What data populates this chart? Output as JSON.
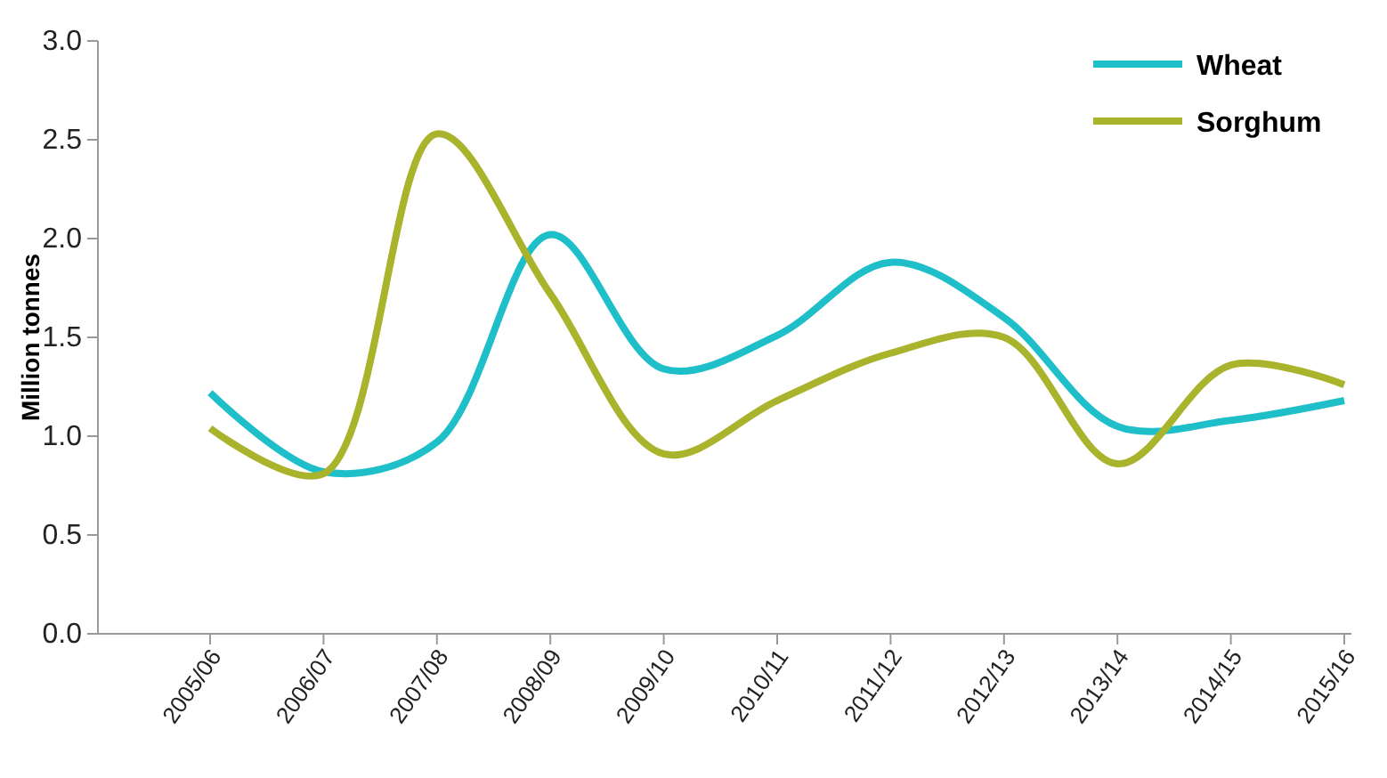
{
  "chart_data": {
    "type": "line",
    "ylabel": "Million tonnes",
    "categories": [
      "2005/06",
      "2006/07",
      "2007/08",
      "2008/09",
      "2009/10",
      "2010/11",
      "2011/12",
      "2012/13",
      "2013/14",
      "2014/15",
      "2015/16"
    ],
    "series": [
      {
        "name": "Wheat",
        "color": "#1fbfca",
        "values": [
          1.22,
          0.82,
          0.97,
          2.02,
          1.34,
          1.51,
          1.88,
          1.6,
          1.05,
          1.08,
          1.18
        ]
      },
      {
        "name": "Sorghum",
        "color": "#a9b42c",
        "values": [
          1.04,
          0.81,
          2.53,
          1.72,
          0.91,
          1.18,
          1.42,
          1.5,
          0.86,
          1.36,
          1.26
        ]
      }
    ],
    "ylim": [
      0,
      3
    ],
    "yticks": [
      {
        "value": 0,
        "label": "0.0"
      },
      {
        "value": 0.5,
        "label": "0.5"
      },
      {
        "value": 1,
        "label": "1.0"
      },
      {
        "value": 1.5,
        "label": "1.5"
      },
      {
        "value": 2,
        "label": "2.0"
      },
      {
        "value": 2.5,
        "label": "2.5"
      },
      {
        "value": 3,
        "label": "3.0"
      }
    ],
    "grid": false,
    "legend": "top right",
    "marker": "none",
    "line_style": "solid"
  }
}
